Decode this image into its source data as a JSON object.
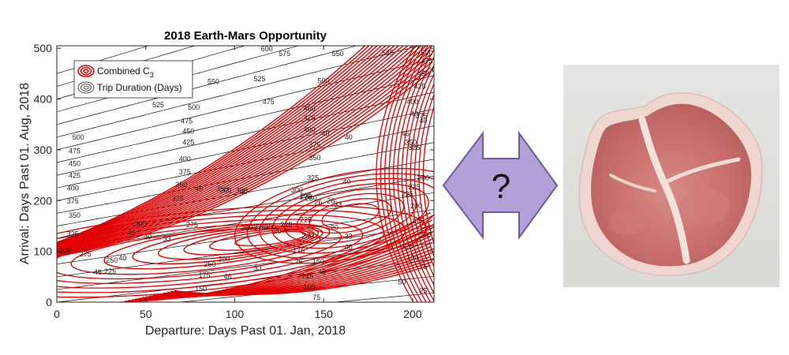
{
  "chart_data": {
    "type": "contour",
    "title": "2018 Earth-Mars Opportunity",
    "xlabel": "Departure: Days Past 01. Jan, 2018",
    "ylabel": "Arrival: Days Past 01. Aug, 2018",
    "xlim": [
      0,
      212
    ],
    "ylim": [
      0,
      505
    ],
    "xticks": [
      0,
      50,
      100,
      150,
      200
    ],
    "yticks": [
      0,
      100,
      200,
      300,
      400,
      500
    ],
    "grid": false,
    "legend_position": "top-left",
    "legend": [
      {
        "label_main": "Combined C",
        "label_sub": "3",
        "color": "#e00000"
      },
      {
        "label_main": "Trip Duration (Days)",
        "label_sub": "",
        "color": "#000000"
      }
    ],
    "series": [
      {
        "name": "Trip Duration (Days)",
        "kind": "iso-lines",
        "color": "#000000",
        "levels": [
          25,
          50,
          75,
          100,
          125,
          150,
          175,
          200,
          225,
          250,
          275,
          300,
          325,
          350,
          375,
          400,
          425,
          450,
          475,
          500,
          525,
          550,
          575,
          600
        ]
      },
      {
        "name": "Combined C3",
        "kind": "contours",
        "color": "#e00000",
        "minimum_type2": {
          "departure": 125,
          "arrival": 135
        },
        "minimum_type1": {
          "departure": 148,
          "arrival": 230
        }
      }
    ],
    "contour_labels": [
      {
        "text": "600",
        "x": 118,
        "y": 494
      },
      {
        "text": "575",
        "x": 128,
        "y": 485
      },
      {
        "text": "550",
        "x": 158,
        "y": 485
      },
      {
        "text": "525",
        "x": 186,
        "y": 486
      },
      {
        "text": "500",
        "x": 208,
        "y": 486
      },
      {
        "text": "550",
        "x": 88,
        "y": 430
      },
      {
        "text": "525",
        "x": 114,
        "y": 435
      },
      {
        "text": "500",
        "x": 150,
        "y": 431
      },
      {
        "text": "525",
        "x": 57,
        "y": 384
      },
      {
        "text": "500",
        "x": 77,
        "y": 379
      },
      {
        "text": "475",
        "x": 119,
        "y": 390
      },
      {
        "text": "475",
        "x": 208,
        "y": 470
      },
      {
        "text": "450",
        "x": 206,
        "y": 445
      },
      {
        "text": "425",
        "x": 204,
        "y": 420
      },
      {
        "text": "400",
        "x": 200,
        "y": 390
      },
      {
        "text": "475",
        "x": 73,
        "y": 352
      },
      {
        "text": "450",
        "x": 74,
        "y": 332
      },
      {
        "text": "425",
        "x": 74,
        "y": 310
      },
      {
        "text": "400",
        "x": 72,
        "y": 277
      },
      {
        "text": "375",
        "x": 72,
        "y": 252
      },
      {
        "text": "350",
        "x": 70,
        "y": 227
      },
      {
        "text": "325",
        "x": 68,
        "y": 200
      },
      {
        "text": "300",
        "x": 104,
        "y": 215
      },
      {
        "text": "450",
        "x": 142,
        "y": 377
      },
      {
        "text": "425",
        "x": 142,
        "y": 358
      },
      {
        "text": "400",
        "x": 142,
        "y": 335
      },
      {
        "text": "375",
        "x": 145,
        "y": 305
      },
      {
        "text": "350",
        "x": 145,
        "y": 280
      },
      {
        "text": "325",
        "x": 144,
        "y": 240
      },
      {
        "text": "300",
        "x": 135,
        "y": 216
      },
      {
        "text": "500",
        "x": 12,
        "y": 320
      },
      {
        "text": "475",
        "x": 10,
        "y": 293
      },
      {
        "text": "450",
        "x": 10,
        "y": 268
      },
      {
        "text": "425",
        "x": 10,
        "y": 245
      },
      {
        "text": "400",
        "x": 9,
        "y": 220
      },
      {
        "text": "375",
        "x": 9,
        "y": 194
      },
      {
        "text": "350",
        "x": 10,
        "y": 166
      },
      {
        "text": "325",
        "x": 9,
        "y": 130
      },
      {
        "text": "300",
        "x": 5,
        "y": 96
      },
      {
        "text": "275",
        "x": 16,
        "y": 90
      },
      {
        "text": "250",
        "x": 31,
        "y": 78
      },
      {
        "text": "225",
        "x": 30,
        "y": 56
      },
      {
        "text": "46",
        "x": 23,
        "y": 54
      },
      {
        "text": "40",
        "x": 37,
        "y": 82
      },
      {
        "text": "300",
        "x": 47,
        "y": 150
      },
      {
        "text": "275",
        "x": 76,
        "y": 148
      },
      {
        "text": "350",
        "x": 93,
        "y": 218
      },
      {
        "text": "46",
        "x": 42,
        "y": 132
      },
      {
        "text": "40",
        "x": 51,
        "y": 124
      },
      {
        "text": "33",
        "x": 62,
        "y": 120
      },
      {
        "text": "40",
        "x": 105,
        "y": 213
      },
      {
        "text": "250",
        "x": 107,
        "y": 142
      },
      {
        "text": "275",
        "x": 114,
        "y": 142
      },
      {
        "text": "300",
        "x": 120,
        "y": 143
      },
      {
        "text": "225",
        "x": 129,
        "y": 148
      },
      {
        "text": "20",
        "x": 124,
        "y": 135
      },
      {
        "text": "200",
        "x": 94,
        "y": 80
      },
      {
        "text": "175",
        "x": 83,
        "y": 48
      },
      {
        "text": "150",
        "x": 81,
        "y": 22
      },
      {
        "text": "46",
        "x": 96,
        "y": 46
      },
      {
        "text": "33",
        "x": 113,
        "y": 62
      },
      {
        "text": "250",
        "x": 86,
        "y": 70
      },
      {
        "text": "225",
        "x": 140,
        "y": 158
      },
      {
        "text": "200",
        "x": 141,
        "y": 125
      },
      {
        "text": "175",
        "x": 136,
        "y": 97
      },
      {
        "text": "26",
        "x": 136,
        "y": 75
      },
      {
        "text": "150",
        "x": 147,
        "y": 75
      },
      {
        "text": "125",
        "x": 141,
        "y": 47
      },
      {
        "text": "40",
        "x": 149,
        "y": 55
      },
      {
        "text": "33",
        "x": 164,
        "y": 125
      },
      {
        "text": "20",
        "x": 156,
        "y": 142
      },
      {
        "text": "40",
        "x": 164,
        "y": 104
      },
      {
        "text": "100",
        "x": 142,
        "y": 25
      },
      {
        "text": "75",
        "x": 146,
        "y": 5
      },
      {
        "text": "275",
        "x": 140,
        "y": 203
      },
      {
        "text": "250",
        "x": 143,
        "y": 200
      },
      {
        "text": "26",
        "x": 147,
        "y": 192
      },
      {
        "text": "40",
        "x": 163,
        "y": 232
      },
      {
        "text": "26",
        "x": 154,
        "y": 195
      },
      {
        "text": "33",
        "x": 158,
        "y": 188
      },
      {
        "text": "225",
        "x": 197,
        "y": 208
      },
      {
        "text": "200",
        "x": 202,
        "y": 185
      },
      {
        "text": "175",
        "x": 203,
        "y": 155
      },
      {
        "text": "150",
        "x": 207,
        "y": 128
      },
      {
        "text": "125",
        "x": 197,
        "y": 105
      },
      {
        "text": "100",
        "x": 200,
        "y": 83
      },
      {
        "text": "75",
        "x": 206,
        "y": 65
      },
      {
        "text": "50",
        "x": 194,
        "y": 35
      },
      {
        "text": "25",
        "x": 206,
        "y": 18
      },
      {
        "text": "250",
        "x": 206,
        "y": 240
      },
      {
        "text": "225",
        "x": 201,
        "y": 222
      },
      {
        "text": "350",
        "x": 199,
        "y": 310
      },
      {
        "text": "325",
        "x": 201,
        "y": 300
      },
      {
        "text": "375",
        "x": 205,
        "y": 362
      },
      {
        "text": "40",
        "x": 201,
        "y": 366
      },
      {
        "text": "40",
        "x": 151,
        "y": 327
      },
      {
        "text": "40",
        "x": 164,
        "y": 320
      },
      {
        "text": "46",
        "x": 196,
        "y": 327
      },
      {
        "text": "46",
        "x": 80,
        "y": 218
      },
      {
        "text": "300",
        "x": 95,
        "y": 215
      },
      {
        "text": "200",
        "x": 140,
        "y": 205
      },
      {
        "text": "46",
        "x": 212,
        "y": 453
      },
      {
        "text": "40",
        "x": 206,
        "y": 353
      }
    ]
  },
  "arrow": {
    "label": "?",
    "fill": "#b4a0d8",
    "stroke": "#6e5a9c"
  },
  "photo": {
    "subject": "raw pork chop",
    "background": "#e6e6e4"
  }
}
